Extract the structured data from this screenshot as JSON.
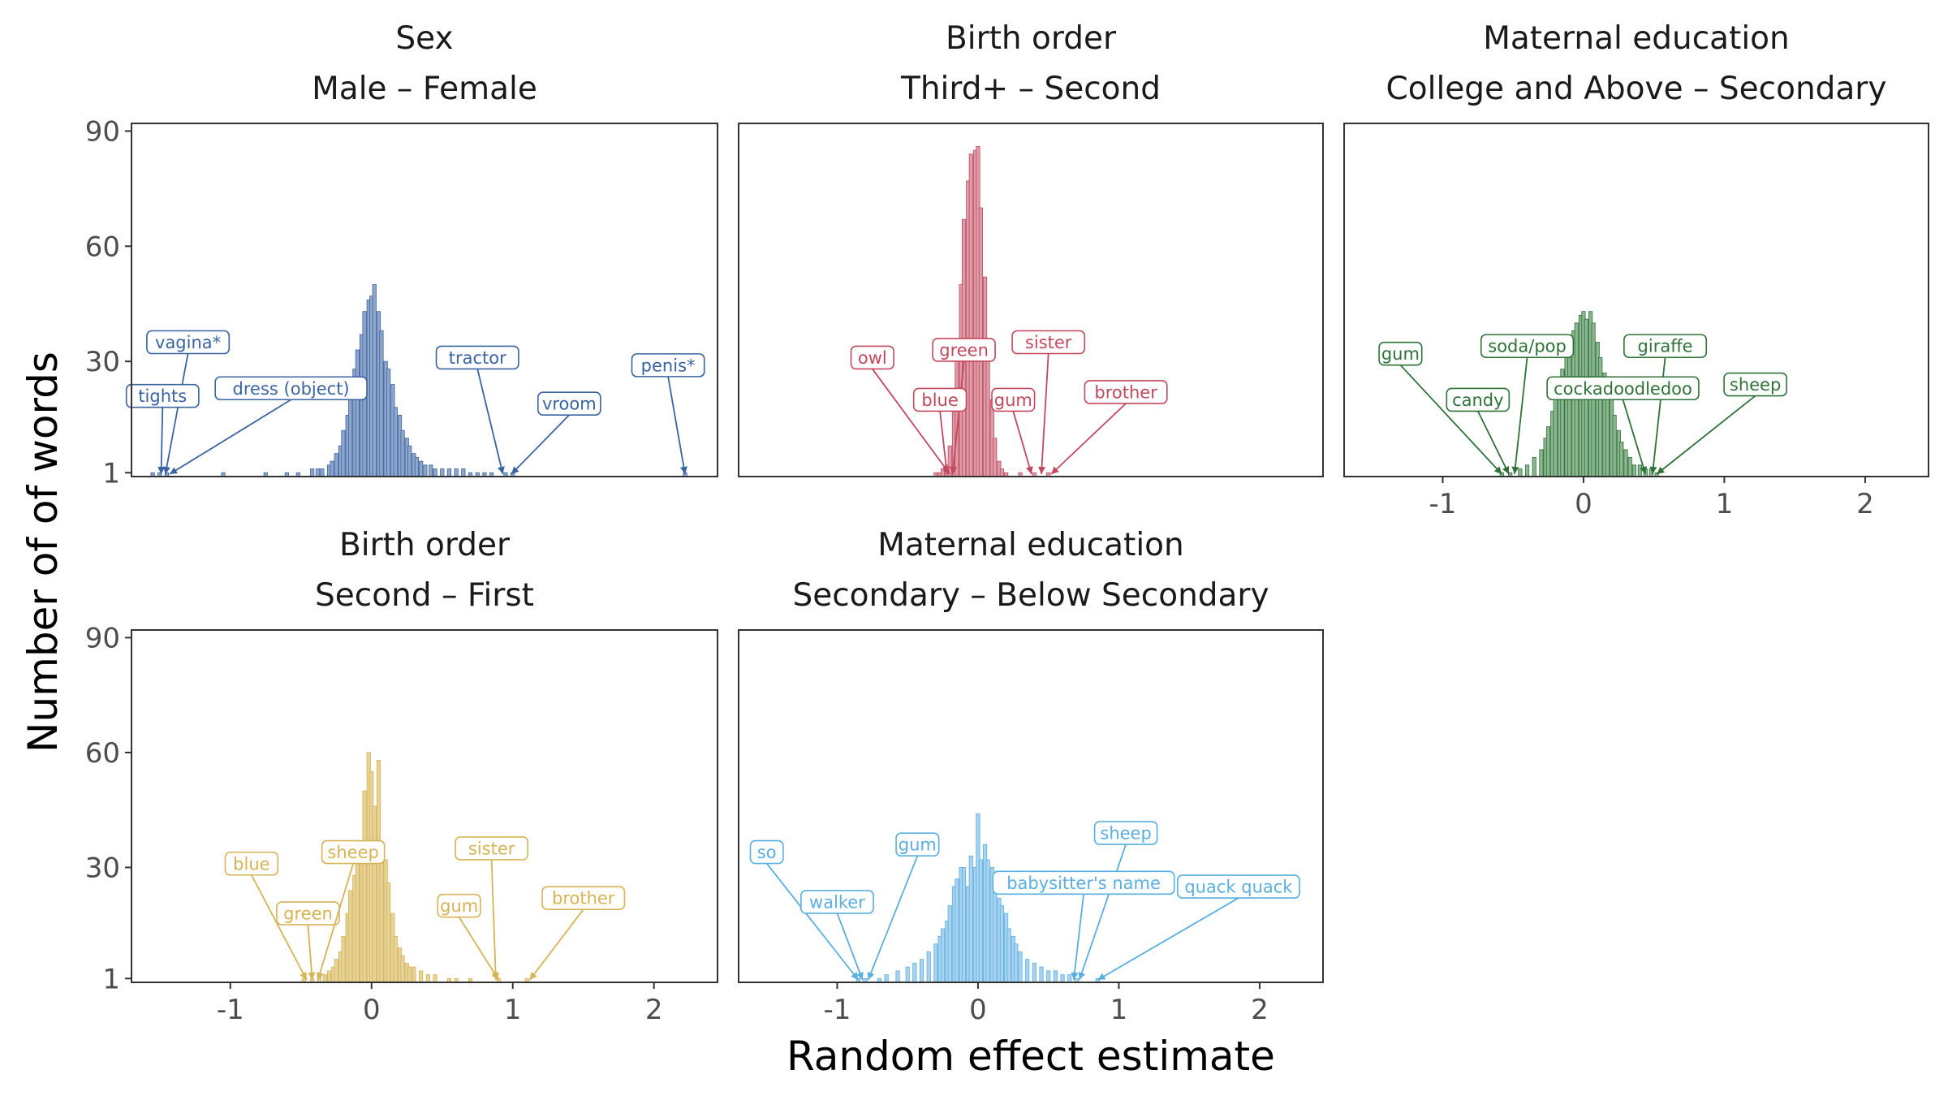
{
  "chart_data": {
    "type": "bar",
    "xlabel": "Random effect estimate",
    "ylabel": "Number of of words",
    "xlim": [
      -1.7,
      2.45
    ],
    "ylim": [
      0,
      92
    ],
    "x_ticks": [
      -1,
      0,
      1,
      2
    ],
    "x_tick_labels": [
      "-1",
      "0",
      "1",
      "2"
    ],
    "y_ticks": [
      1,
      30,
      60,
      90
    ],
    "y_tick_labels": [
      "1",
      "30",
      "60",
      "90"
    ],
    "bin_width": 0.025,
    "grid": false,
    "panels": [
      {
        "variable": "Sex",
        "contrast": "Male – Female",
        "color": "#3A63A1",
        "fill": "#8FA6CB",
        "bins": [
          [
            -1.55,
            1
          ],
          [
            -1.5,
            1
          ],
          [
            -1.45,
            1
          ],
          [
            -1.05,
            1
          ],
          [
            -0.75,
            1
          ],
          [
            -0.6,
            1
          ],
          [
            -0.52,
            1
          ],
          [
            -0.42,
            2
          ],
          [
            -0.38,
            2
          ],
          [
            -0.35,
            2
          ],
          [
            -0.3,
            3
          ],
          [
            -0.28,
            4
          ],
          [
            -0.25,
            6
          ],
          [
            -0.22,
            8
          ],
          [
            -0.2,
            12
          ],
          [
            -0.17,
            16
          ],
          [
            -0.15,
            22
          ],
          [
            -0.12,
            28
          ],
          [
            -0.1,
            33
          ],
          [
            -0.07,
            37
          ],
          [
            -0.05,
            43
          ],
          [
            -0.02,
            46
          ],
          [
            0.0,
            47
          ],
          [
            0.02,
            50
          ],
          [
            0.05,
            43
          ],
          [
            0.07,
            38
          ],
          [
            0.1,
            30
          ],
          [
            0.12,
            28
          ],
          [
            0.15,
            24
          ],
          [
            0.17,
            18
          ],
          [
            0.2,
            16
          ],
          [
            0.22,
            12
          ],
          [
            0.25,
            10
          ],
          [
            0.27,
            8
          ],
          [
            0.3,
            6
          ],
          [
            0.32,
            5
          ],
          [
            0.35,
            4
          ],
          [
            0.38,
            3
          ],
          [
            0.42,
            3
          ],
          [
            0.45,
            2
          ],
          [
            0.5,
            2
          ],
          [
            0.55,
            2
          ],
          [
            0.6,
            2
          ],
          [
            0.65,
            2
          ],
          [
            0.7,
            1
          ],
          [
            0.75,
            1
          ],
          [
            0.8,
            1
          ],
          [
            0.85,
            1
          ],
          [
            0.95,
            1
          ],
          [
            1.0,
            1
          ],
          [
            2.22,
            1
          ]
        ],
        "labels": [
          {
            "text": "vagina*",
            "x": -1.3,
            "y": 35,
            "target": -1.46
          },
          {
            "text": "tights",
            "x": -1.48,
            "y": 21,
            "target": -1.49
          },
          {
            "text": "dress (object)",
            "x": -0.57,
            "y": 23,
            "target": -1.43
          },
          {
            "text": "tractor",
            "x": 0.75,
            "y": 31,
            "target": 0.93
          },
          {
            "text": "vroom",
            "x": 1.4,
            "y": 19,
            "target": 0.99
          },
          {
            "text": "penis*",
            "x": 2.1,
            "y": 29,
            "target": 2.22
          }
        ]
      },
      {
        "variable": "Birth order",
        "contrast": "Third+ – Second",
        "color": "#C2485E",
        "fill": "#DC9CA8",
        "bins": [
          [
            -0.3,
            1
          ],
          [
            -0.27,
            1
          ],
          [
            -0.25,
            2
          ],
          [
            -0.22,
            3
          ],
          [
            -0.2,
            8
          ],
          [
            -0.17,
            18
          ],
          [
            -0.15,
            30
          ],
          [
            -0.12,
            50
          ],
          [
            -0.1,
            67
          ],
          [
            -0.07,
            77
          ],
          [
            -0.05,
            84
          ],
          [
            -0.02,
            85
          ],
          [
            0.0,
            86
          ],
          [
            0.02,
            70
          ],
          [
            0.05,
            52
          ],
          [
            0.07,
            35
          ],
          [
            0.1,
            20
          ],
          [
            0.12,
            10
          ],
          [
            0.15,
            4
          ],
          [
            0.17,
            2
          ],
          [
            0.2,
            1
          ],
          [
            0.3,
            1
          ],
          [
            0.4,
            1
          ],
          [
            0.5,
            1
          ]
        ],
        "labels": [
          {
            "text": "owl",
            "x": -0.75,
            "y": 31,
            "target": -0.2
          },
          {
            "text": "green",
            "x": -0.1,
            "y": 33,
            "target": -0.18
          },
          {
            "text": "blue",
            "x": -0.27,
            "y": 20,
            "target": -0.22
          },
          {
            "text": "sister",
            "x": 0.5,
            "y": 35,
            "target": 0.45
          },
          {
            "text": "gum",
            "x": 0.25,
            "y": 20,
            "target": 0.38
          },
          {
            "text": "brother",
            "x": 1.05,
            "y": 22,
            "target": 0.52
          }
        ]
      },
      {
        "variable": "Maternal education",
        "contrast": "College and Above – Secondary",
        "color": "#2F7238",
        "fill": "#8CB592",
        "bins": [
          [
            -0.58,
            1
          ],
          [
            -0.52,
            1
          ],
          [
            -0.45,
            2
          ],
          [
            -0.4,
            3
          ],
          [
            -0.35,
            5
          ],
          [
            -0.3,
            7
          ],
          [
            -0.27,
            10
          ],
          [
            -0.25,
            13
          ],
          [
            -0.22,
            17
          ],
          [
            -0.2,
            21
          ],
          [
            -0.17,
            25
          ],
          [
            -0.15,
            28
          ],
          [
            -0.12,
            32
          ],
          [
            -0.1,
            36
          ],
          [
            -0.07,
            38
          ],
          [
            -0.05,
            40
          ],
          [
            -0.02,
            42
          ],
          [
            0.0,
            43
          ],
          [
            0.02,
            41
          ],
          [
            0.05,
            43
          ],
          [
            0.07,
            40
          ],
          [
            0.1,
            35
          ],
          [
            0.12,
            31
          ],
          [
            0.15,
            27
          ],
          [
            0.17,
            24
          ],
          [
            0.2,
            20
          ],
          [
            0.22,
            16
          ],
          [
            0.25,
            12
          ],
          [
            0.27,
            9
          ],
          [
            0.3,
            7
          ],
          [
            0.33,
            5
          ],
          [
            0.36,
            3
          ],
          [
            0.4,
            3
          ],
          [
            0.44,
            2
          ],
          [
            0.48,
            2
          ],
          [
            0.52,
            1
          ]
        ],
        "labels": [
          {
            "text": "gum",
            "x": -1.3,
            "y": 32,
            "target": -0.58
          },
          {
            "text": "candy",
            "x": -0.75,
            "y": 20,
            "target": -0.53
          },
          {
            "text": "soda/pop",
            "x": -0.4,
            "y": 34,
            "target": -0.49
          },
          {
            "text": "giraffe",
            "x": 0.58,
            "y": 34,
            "target": 0.49
          },
          {
            "text": "cockadoodledoo",
            "x": 0.28,
            "y": 23,
            "target": 0.44
          },
          {
            "text": "sheep",
            "x": 1.22,
            "y": 24,
            "target": 0.52
          }
        ]
      },
      {
        "variable": "Birth order",
        "contrast": "Second – First",
        "color": "#D6B354",
        "fill": "#E6D39A",
        "bins": [
          [
            -0.48,
            1
          ],
          [
            -0.42,
            1
          ],
          [
            -0.37,
            2
          ],
          [
            -0.33,
            2
          ],
          [
            -0.3,
            3
          ],
          [
            -0.27,
            4
          ],
          [
            -0.25,
            6
          ],
          [
            -0.22,
            8
          ],
          [
            -0.2,
            12
          ],
          [
            -0.17,
            18
          ],
          [
            -0.15,
            24
          ],
          [
            -0.12,
            28
          ],
          [
            -0.1,
            32
          ],
          [
            -0.07,
            36
          ],
          [
            -0.05,
            50
          ],
          [
            -0.02,
            60
          ],
          [
            0.0,
            55
          ],
          [
            0.02,
            46
          ],
          [
            0.05,
            58
          ],
          [
            0.07,
            36
          ],
          [
            0.1,
            32
          ],
          [
            0.12,
            26
          ],
          [
            0.15,
            18
          ],
          [
            0.17,
            12
          ],
          [
            0.2,
            9
          ],
          [
            0.22,
            7
          ],
          [
            0.25,
            5
          ],
          [
            0.27,
            4
          ],
          [
            0.3,
            4
          ],
          [
            0.35,
            3
          ],
          [
            0.4,
            2
          ],
          [
            0.45,
            2
          ],
          [
            0.55,
            1
          ],
          [
            0.6,
            1
          ],
          [
            0.7,
            1
          ],
          [
            0.9,
            1
          ],
          [
            1.1,
            1
          ]
        ],
        "labels": [
          {
            "text": "blue",
            "x": -0.85,
            "y": 31,
            "target": -0.46
          },
          {
            "text": "green",
            "x": -0.45,
            "y": 18,
            "target": -0.42
          },
          {
            "text": "sheep",
            "x": -0.13,
            "y": 34,
            "target": -0.38
          },
          {
            "text": "sister",
            "x": 0.85,
            "y": 35,
            "target": 0.88
          },
          {
            "text": "gum",
            "x": 0.62,
            "y": 20,
            "target": 0.9
          },
          {
            "text": "brother",
            "x": 1.5,
            "y": 22,
            "target": 1.12
          }
        ]
      },
      {
        "variable": "Maternal education",
        "contrast": "Secondary – Below Secondary",
        "color": "#5AAEE0",
        "fill": "#A9D3EF",
        "bins": [
          [
            -0.85,
            1
          ],
          [
            -0.8,
            1
          ],
          [
            -0.7,
            1
          ],
          [
            -0.65,
            2
          ],
          [
            -0.57,
            3
          ],
          [
            -0.5,
            4
          ],
          [
            -0.45,
            5
          ],
          [
            -0.4,
            6
          ],
          [
            -0.35,
            8
          ],
          [
            -0.3,
            10
          ],
          [
            -0.27,
            12
          ],
          [
            -0.25,
            14
          ],
          [
            -0.22,
            16
          ],
          [
            -0.2,
            20
          ],
          [
            -0.17,
            25
          ],
          [
            -0.15,
            27
          ],
          [
            -0.12,
            30
          ],
          [
            -0.1,
            30
          ],
          [
            -0.07,
            25
          ],
          [
            -0.05,
            33
          ],
          [
            -0.02,
            30
          ],
          [
            0.0,
            44
          ],
          [
            0.02,
            32
          ],
          [
            0.05,
            36
          ],
          [
            0.07,
            32
          ],
          [
            0.1,
            30
          ],
          [
            0.12,
            25
          ],
          [
            0.15,
            22
          ],
          [
            0.17,
            20
          ],
          [
            0.2,
            18
          ],
          [
            0.22,
            14
          ],
          [
            0.25,
            12
          ],
          [
            0.27,
            10
          ],
          [
            0.3,
            8
          ],
          [
            0.35,
            6
          ],
          [
            0.4,
            5
          ],
          [
            0.45,
            4
          ],
          [
            0.5,
            3
          ],
          [
            0.55,
            3
          ],
          [
            0.6,
            2
          ],
          [
            0.65,
            2
          ],
          [
            0.7,
            1
          ],
          [
            0.85,
            1
          ]
        ],
        "labels": [
          {
            "text": "so",
            "x": -1.5,
            "y": 34,
            "target": -0.85
          },
          {
            "text": "walker",
            "x": -1.0,
            "y": 21,
            "target": -0.82
          },
          {
            "text": "gum",
            "x": -0.43,
            "y": 36,
            "target": -0.78
          },
          {
            "text": "sheep",
            "x": 1.05,
            "y": 39,
            "target": 0.72
          },
          {
            "text": "babysitter's name",
            "x": 0.75,
            "y": 26,
            "target": 0.68
          },
          {
            "text": "quack quack",
            "x": 1.85,
            "y": 25,
            "target": 0.85
          }
        ]
      }
    ]
  }
}
